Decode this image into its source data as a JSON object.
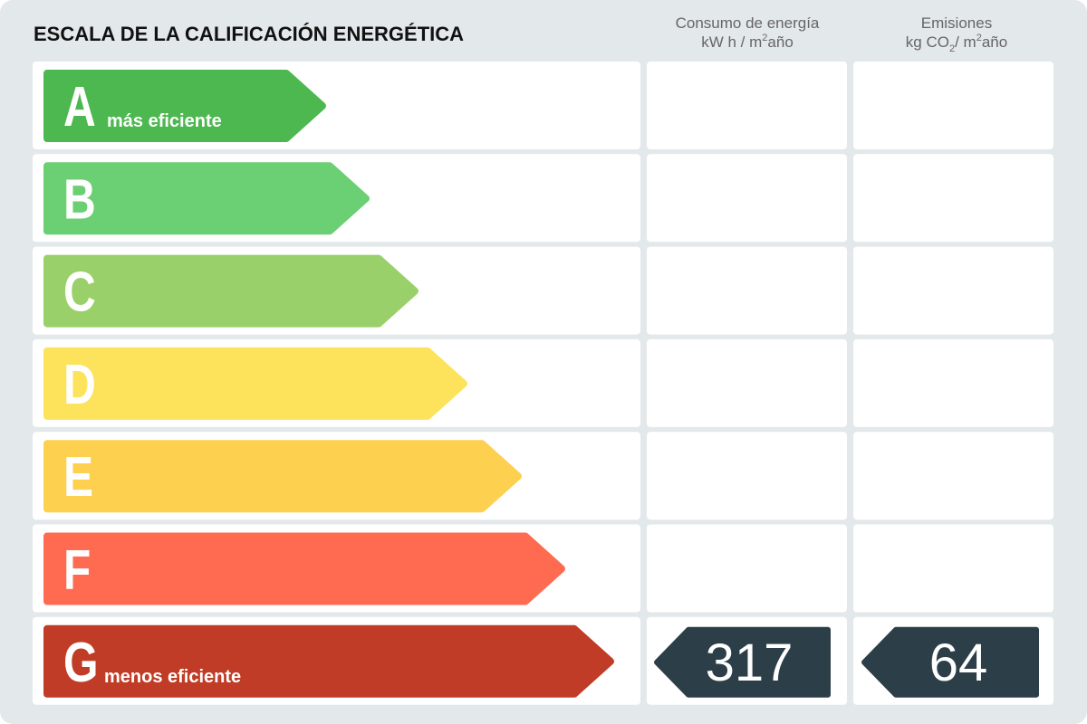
{
  "header": {
    "title": "ESCALA DE LA CALIFICACIÓN ENERGÉTICA",
    "consumo": {
      "label": "Consumo de energía",
      "unit": [
        "kW h / m",
        "2",
        "año"
      ]
    },
    "emisiones": {
      "label": "Emisiones",
      "unit": [
        "kg CO",
        "2",
        "/ m",
        "2",
        "año"
      ]
    }
  },
  "rows": [
    {
      "letter": "A",
      "note": "más eficiente"
    },
    {
      "letter": "B"
    },
    {
      "letter": "C"
    },
    {
      "letter": "D"
    },
    {
      "letter": "E"
    },
    {
      "letter": "F"
    },
    {
      "letter": "G",
      "note": "menos eficiente",
      "consumo": "317",
      "emisiones": "64"
    }
  ]
}
